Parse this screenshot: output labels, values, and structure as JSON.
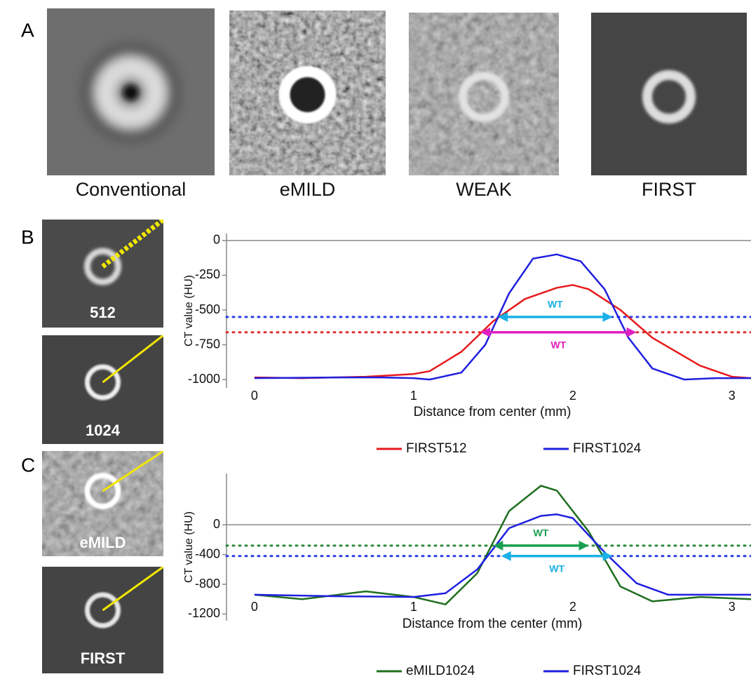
{
  "panels": {
    "A": {
      "label": "A",
      "captions": [
        "Conventional",
        "eMILD",
        "WEAK",
        "FIRST"
      ]
    },
    "B": {
      "label": "B",
      "captions": [
        "512",
        "1024"
      ]
    },
    "C": {
      "label": "C",
      "captions": [
        "eMILD",
        "FIRST"
      ]
    }
  },
  "chart_data": [
    {
      "type": "line",
      "x_label": "Distance from center (mm)",
      "y_label": "CT value (HU)",
      "xlim": [
        -0.176,
        3.12
      ],
      "xticks": [
        0,
        1,
        2,
        3
      ],
      "ylim": [
        -1060,
        50
      ],
      "yticks": [
        0,
        -250,
        -500,
        -750,
        -1000
      ],
      "series": [
        {
          "name": "FIRST512",
          "color": "#e8191b",
          "x": [
            0,
            0.3,
            0.7,
            1.0,
            1.1,
            1.3,
            1.5,
            1.7,
            1.9,
            2.0,
            2.1,
            2.3,
            2.5,
            2.8,
            3.0,
            3.12
          ],
          "values": [
            -985,
            -990,
            -980,
            -960,
            -940,
            -800,
            -580,
            -420,
            -340,
            -320,
            -350,
            -500,
            -700,
            -900,
            -980,
            -990
          ]
        },
        {
          "name": "FIRST1024",
          "color": "#1f1fe0",
          "x": [
            0,
            0.5,
            0.8,
            1.0,
            1.1,
            1.3,
            1.45,
            1.6,
            1.75,
            1.9,
            2.05,
            2.2,
            2.35,
            2.5,
            2.7,
            2.9,
            3.12
          ],
          "values": [
            -990,
            -985,
            -985,
            -990,
            -1000,
            -950,
            -750,
            -380,
            -130,
            -100,
            -150,
            -350,
            -700,
            -920,
            -1000,
            -990,
            -990
          ]
        }
      ],
      "hlines": [
        {
          "y": -550,
          "color": "#2a3ee0"
        },
        {
          "y": -660,
          "color": "#e03030"
        }
      ],
      "annotations": [
        {
          "text": "WT",
          "color": "#1ab0e6",
          "x": [
            1.53,
            2.25
          ],
          "y": -550,
          "position": "above"
        },
        {
          "text": "WT",
          "color": "#e020c0",
          "x": [
            1.42,
            2.4
          ],
          "y": -660,
          "position": "below"
        }
      ]
    },
    {
      "type": "line",
      "x_label": "Distance from the center (mm)",
      "y_label": "CT value (HU)",
      "xlim": [
        -0.176,
        3.12
      ],
      "xticks": [
        0,
        1,
        2,
        3
      ],
      "ylim": [
        -1290,
        690
      ],
      "yticks": [
        0,
        -400,
        -800,
        -1200
      ],
      "series": [
        {
          "name": "eMILD1024",
          "color": "#1e6e1e",
          "x": [
            0,
            0.3,
            0.7,
            1.0,
            1.2,
            1.4,
            1.6,
            1.8,
            1.9,
            2.1,
            2.3,
            2.5,
            2.8,
            3.12
          ],
          "values": [
            -940,
            -1000,
            -895,
            -970,
            -1070,
            -650,
            185,
            525,
            460,
            -90,
            -830,
            -1030,
            -970,
            -1000
          ]
        },
        {
          "name": "FIRST1024",
          "color": "#1f1fe0",
          "x": [
            0,
            0.5,
            1.0,
            1.2,
            1.4,
            1.6,
            1.8,
            1.9,
            2.0,
            2.2,
            2.4,
            2.6,
            3.12
          ],
          "values": [
            -940,
            -960,
            -970,
            -920,
            -600,
            -45,
            120,
            140,
            90,
            -370,
            -785,
            -940,
            -940
          ]
        }
      ],
      "hlines": [
        {
          "y": -280,
          "color": "#2a8a3a"
        },
        {
          "y": -420,
          "color": "#2a3ee0"
        }
      ],
      "annotations": [
        {
          "text": "WT",
          "color": "#1aa050",
          "x": [
            1.5,
            2.1
          ],
          "y": -280,
          "position": "above"
        },
        {
          "text": "WT",
          "color": "#1ab0e6",
          "x": [
            1.55,
            2.25
          ],
          "y": -420,
          "position": "below"
        }
      ]
    }
  ]
}
